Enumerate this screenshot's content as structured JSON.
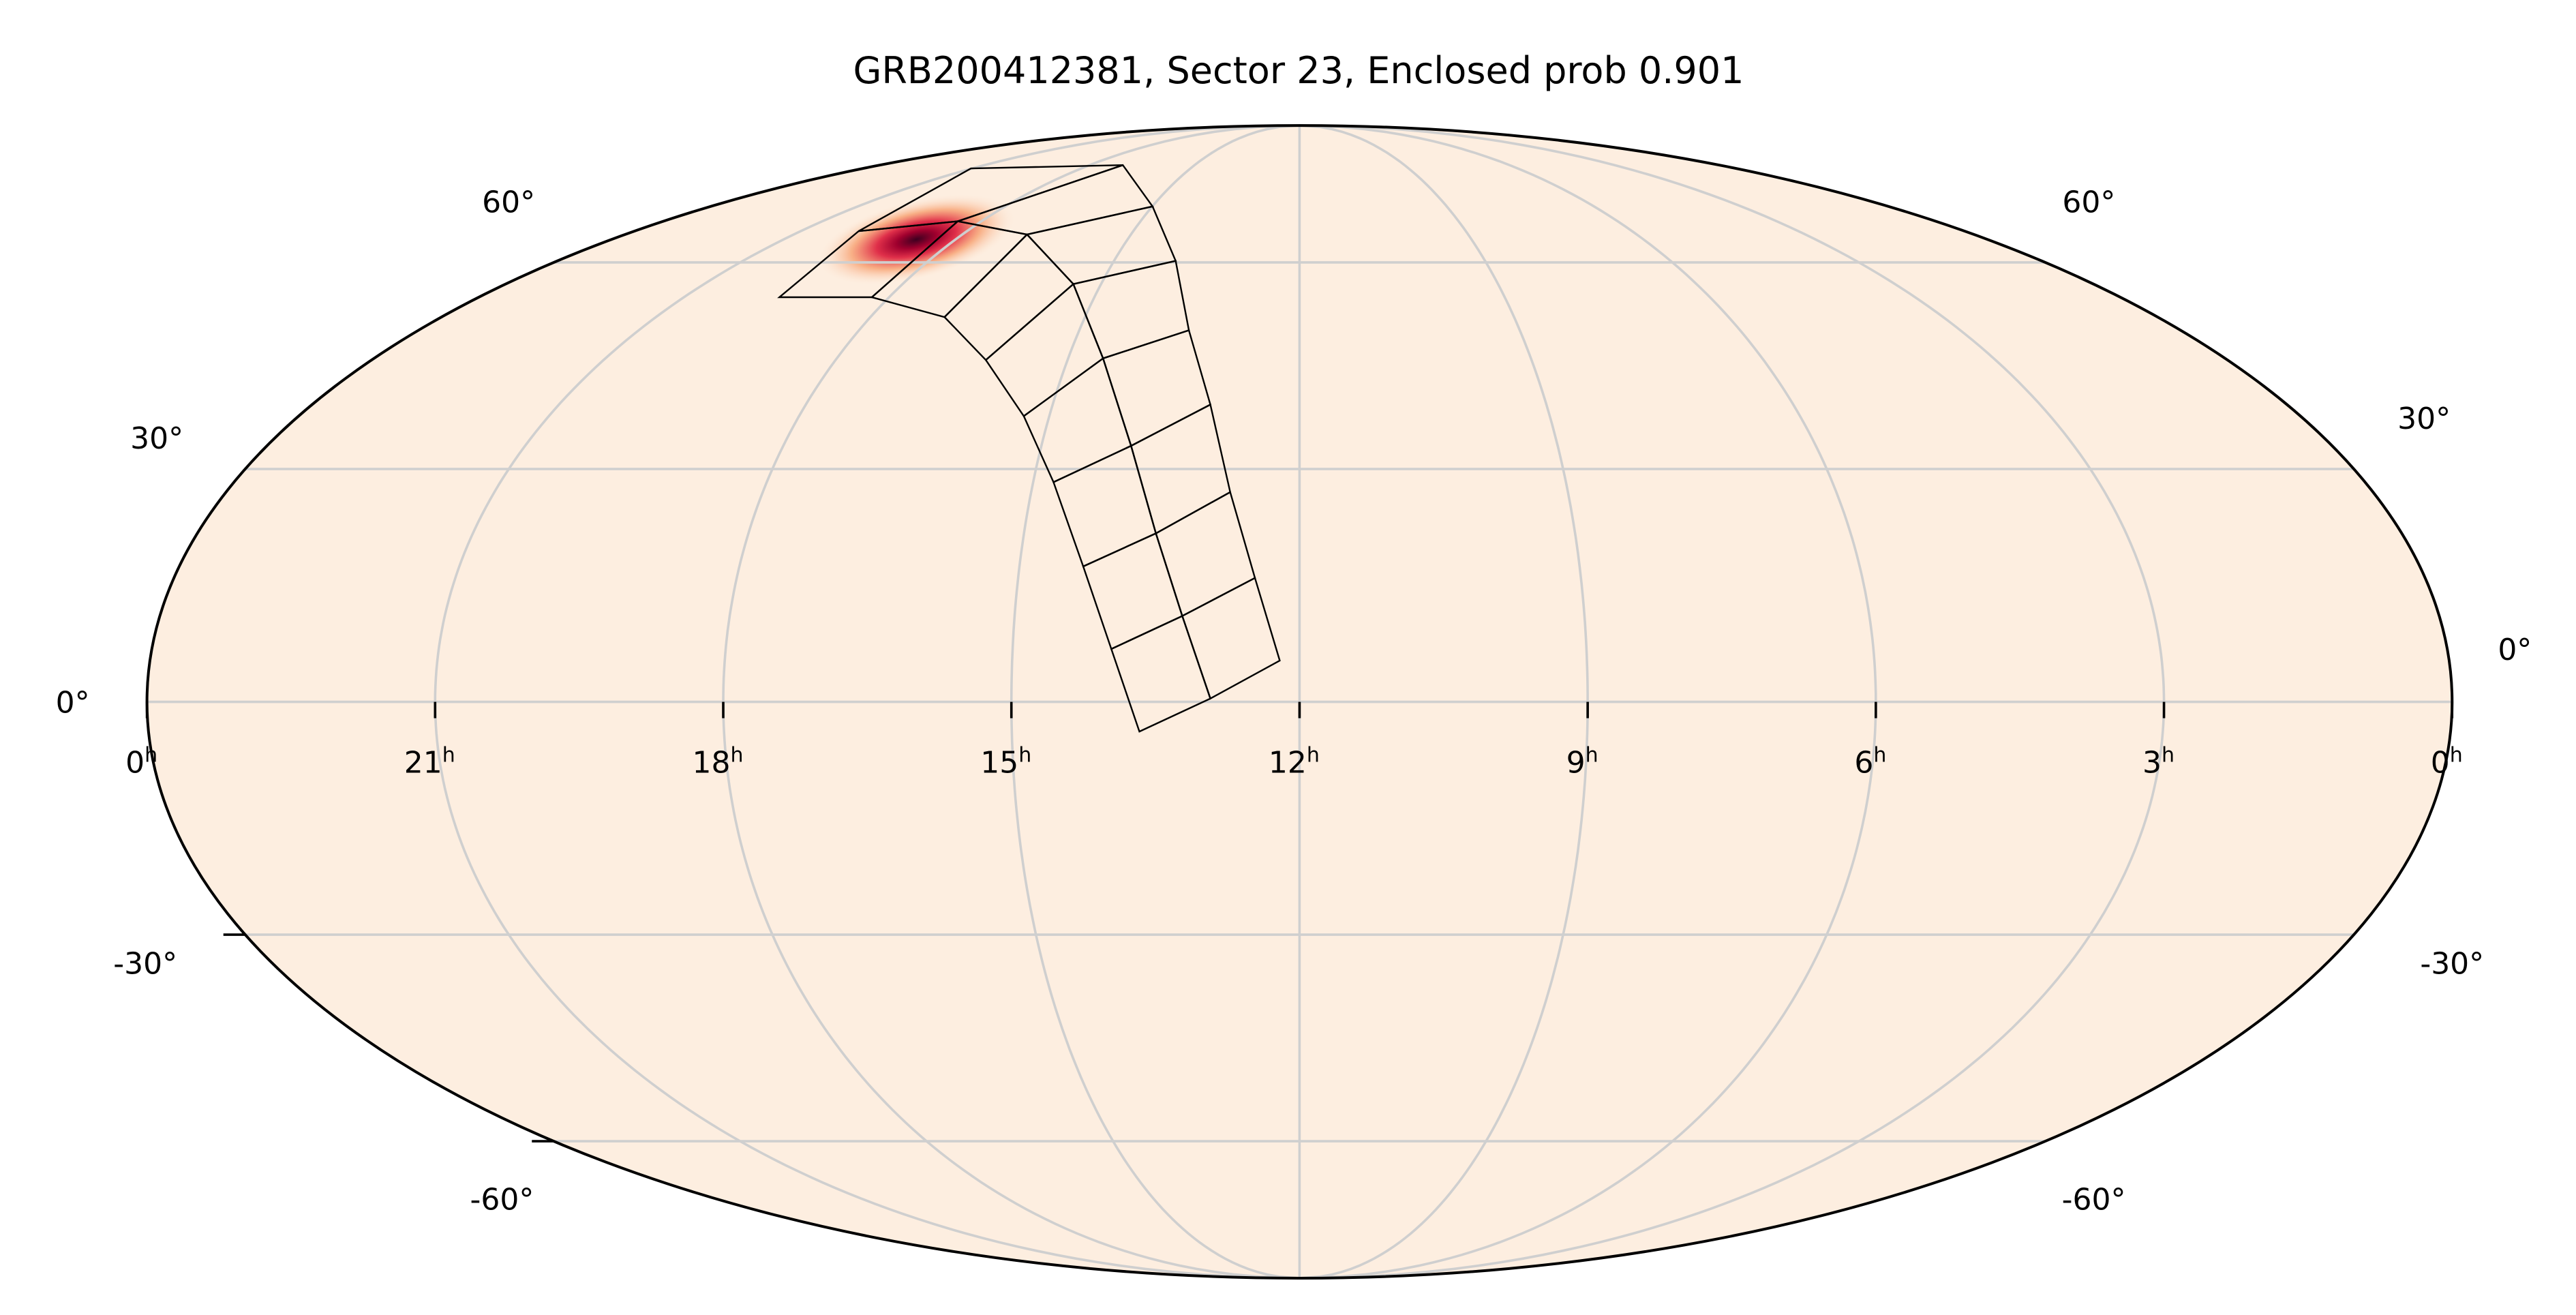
{
  "title": "GRB200412381, Sector 23, Enclosed prob 0.901",
  "ra_ticks": [
    {
      "value": 24,
      "label": "0",
      "sup": "h"
    },
    {
      "value": 21,
      "label": "21",
      "sup": "h"
    },
    {
      "value": 18,
      "label": "18",
      "sup": "h"
    },
    {
      "value": 15,
      "label": "15",
      "sup": "h"
    },
    {
      "value": 12,
      "label": "12",
      "sup": "h"
    },
    {
      "value": 9,
      "label": "9",
      "sup": "h"
    },
    {
      "value": 6,
      "label": "6",
      "sup": "h"
    },
    {
      "value": 3,
      "label": "3",
      "sup": "h"
    },
    {
      "value": 0,
      "label": "0",
      "sup": "h"
    }
  ],
  "dec_ticks": [
    {
      "value": 60,
      "label": "60°"
    },
    {
      "value": 30,
      "label": "30°"
    },
    {
      "value": 0,
      "label": "0°"
    },
    {
      "value": -30,
      "label": "-30°"
    },
    {
      "value": -60,
      "label": "-60°"
    }
  ]
}
